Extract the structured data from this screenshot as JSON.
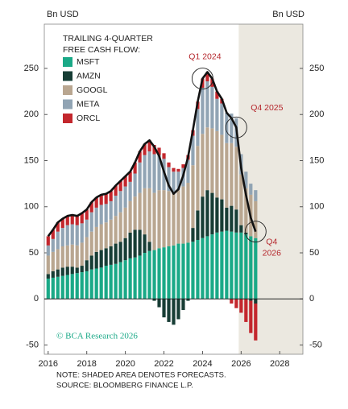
{
  "chart_data": {
    "type": "stacked-bar-line",
    "y_label_left": "Bn USD",
    "y_label_right": "Bn USD",
    "legend_title": [
      "TRAILING 4-QUARTER",
      "FREE CASH FLOW:"
    ],
    "x": [
      2016,
      2016.25,
      2016.5,
      2016.75,
      2017,
      2017.25,
      2017.5,
      2017.75,
      2018,
      2018.25,
      2018.5,
      2018.75,
      2019,
      2019.25,
      2019.5,
      2019.75,
      2020,
      2020.25,
      2020.5,
      2020.75,
      2021,
      2021.25,
      2021.5,
      2021.75,
      2022,
      2022.25,
      2022.5,
      2022.75,
      2023,
      2023.25,
      2023.5,
      2023.75,
      2024,
      2024.25,
      2024.5,
      2024.75,
      2025,
      2025.25,
      2025.5,
      2025.75,
      2026,
      2026.25,
      2026.5,
      2026.75
    ],
    "series": [
      {
        "name": "MSFT",
        "color": "#1aa987",
        "values": [
          22,
          23,
          24,
          25,
          26,
          27,
          28,
          29,
          30,
          32,
          33,
          34,
          36,
          37,
          38,
          40,
          42,
          44,
          45,
          47,
          50,
          52,
          53,
          55,
          56,
          57,
          58,
          60,
          60,
          61,
          62,
          64,
          66,
          68,
          70,
          72,
          73,
          74,
          73,
          72,
          72,
          70,
          68,
          66
        ]
      },
      {
        "name": "AMZN",
        "color": "#173d35",
        "values": [
          5,
          7,
          8,
          9,
          9,
          8,
          6,
          7,
          12,
          15,
          18,
          19,
          19,
          20,
          22,
          22,
          24,
          28,
          30,
          28,
          20,
          10,
          -2,
          -9,
          -20,
          -25,
          -28,
          -22,
          -12,
          -2,
          15,
          32,
          45,
          50,
          45,
          38,
          35,
          25,
          28,
          25,
          8,
          2,
          -2,
          -5
        ]
      },
      {
        "name": "GOOGL",
        "color": "#b9a690",
        "values": [
          20,
          21,
          22,
          23,
          23,
          24,
          24,
          25,
          25,
          26,
          27,
          28,
          28,
          29,
          30,
          32,
          33,
          34,
          36,
          40,
          50,
          58,
          62,
          63,
          62,
          60,
          58,
          58,
          62,
          65,
          68,
          70,
          68,
          68,
          70,
          72,
          70,
          70,
          68,
          68,
          55,
          48,
          45,
          40
        ]
      },
      {
        "name": "META",
        "color": "#91a4b4",
        "values": [
          11,
          14,
          19,
          20,
          22,
          22,
          22,
          21,
          19,
          21,
          21,
          21,
          20,
          20,
          22,
          23,
          23,
          21,
          25,
          33,
          36,
          40,
          42,
          38,
          34,
          26,
          22,
          20,
          20,
          25,
          32,
          40,
          50,
          50,
          45,
          35,
          34,
          33,
          32,
          31,
          22,
          18,
          12,
          12
        ]
      },
      {
        "name": "ORCL",
        "color": "#c3272d",
        "values": [
          10,
          10,
          10,
          10,
          10,
          10,
          10,
          11,
          11,
          11,
          11,
          11,
          11,
          11,
          11,
          11,
          11,
          11,
          12,
          12,
          12,
          12,
          10,
          8,
          6,
          5,
          4,
          3,
          4,
          5,
          6,
          8,
          10,
          10,
          9,
          8,
          5,
          0,
          -5,
          -10,
          -15,
          -25,
          -35,
          -40
        ]
      }
    ],
    "total": {
      "color": "#111111",
      "values": [
        68,
        75,
        83,
        87,
        90,
        91,
        90,
        93,
        97,
        105,
        110,
        113,
        114,
        117,
        123,
        128,
        133,
        138,
        148,
        160,
        168,
        172,
        165,
        155,
        138,
        123,
        114,
        119,
        134,
        154,
        183,
        214,
        239,
        246,
        239,
        225,
        217,
        202,
        196,
        186,
        142,
        113,
        88,
        73
      ]
    },
    "xlim": [
      2015.8,
      2029.2
    ],
    "xticks": [
      2016,
      2018,
      2020,
      2022,
      2024,
      2026,
      2028
    ],
    "ylim": [
      -60,
      298
    ],
    "yticks": [
      -50,
      0,
      50,
      100,
      150,
      200,
      250
    ],
    "forecast_start": 2026,
    "forecast_color": "#ebe8e0",
    "annotations": [
      {
        "text": "Q1 2024"
      },
      {
        "text": "Q4 2025"
      },
      {
        "lines": [
          "Q4",
          "2026"
        ]
      }
    ],
    "copyright": "© BCA Research 2026",
    "notes": [
      "NOTE: SHADED AREA DENOTES FORECASTS.",
      "SOURCE: BLOOMBERG FINANCE L.P."
    ]
  }
}
